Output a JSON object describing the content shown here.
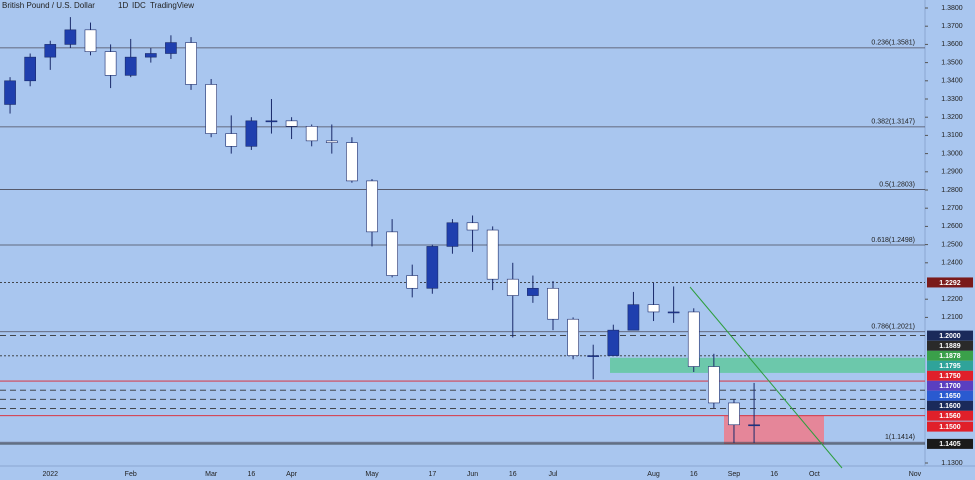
{
  "chart_data": {
    "type": "candlestick",
    "title": "British Pound / U.S. Dollar",
    "interval": "1D",
    "source": "IDC",
    "brand": "TradingView",
    "categories": [
      null,
      null,
      "2022",
      null,
      null,
      null,
      "Feb",
      null,
      null,
      null,
      "Mar",
      null,
      "16",
      null,
      "Apr",
      null,
      null,
      null,
      "May",
      null,
      null,
      "17",
      null,
      "Jun",
      null,
      "16",
      null,
      "Jul",
      null,
      null,
      null,
      null,
      "Aug",
      null,
      "16",
      null,
      "Sep",
      null,
      "16",
      null,
      "Oct",
      null,
      null,
      null,
      null,
      "Nov"
    ],
    "open": [
      1.327,
      1.34,
      1.353,
      1.36,
      1.368,
      1.356,
      1.343,
      1.353,
      1.355,
      1.361,
      1.338,
      1.311,
      1.304,
      1.318,
      1.318,
      1.315,
      1.307,
      1.306,
      1.285,
      1.257,
      1.233,
      1.226,
      1.249,
      1.262,
      1.258,
      1.231,
      1.222,
      1.226,
      1.209,
      1.189,
      1.189,
      1.203,
      1.217,
      1.213,
      1.213,
      1.183,
      1.163,
      1.151,
      null,
      null,
      null,
      null,
      null,
      null,
      null,
      null
    ],
    "high": [
      1.342,
      1.355,
      1.362,
      1.375,
      1.372,
      1.36,
      1.363,
      1.358,
      1.365,
      1.364,
      1.341,
      1.321,
      1.32,
      1.33,
      1.32,
      1.316,
      1.316,
      1.309,
      1.286,
      1.264,
      1.239,
      1.25,
      1.264,
      1.266,
      1.26,
      1.24,
      1.233,
      1.23,
      1.21,
      1.195,
      1.206,
      1.224,
      1.229,
      1.227,
      1.215,
      1.19,
      1.165,
      1.174,
      null,
      null,
      null,
      null,
      null,
      null,
      null,
      null
    ],
    "low": [
      1.322,
      1.337,
      1.346,
      1.358,
      1.354,
      1.336,
      1.342,
      1.35,
      1.352,
      1.335,
      1.309,
      1.3,
      1.302,
      1.311,
      1.308,
      1.304,
      1.3,
      1.284,
      1.249,
      1.232,
      1.221,
      1.223,
      1.245,
      1.246,
      1.225,
      1.199,
      1.218,
      1.203,
      1.187,
      1.176,
      1.189,
      1.203,
      1.208,
      1.207,
      1.18,
      1.16,
      1.141,
      1.141,
      null,
      null,
      null,
      null,
      null,
      null,
      null,
      null
    ],
    "close": [
      1.34,
      1.353,
      1.36,
      1.368,
      1.356,
      1.343,
      1.353,
      1.355,
      1.361,
      1.338,
      1.311,
      1.304,
      1.318,
      1.318,
      1.315,
      1.307,
      1.306,
      1.285,
      1.257,
      1.233,
      1.226,
      1.249,
      1.262,
      1.258,
      1.231,
      1.222,
      1.226,
      1.209,
      1.189,
      1.189,
      1.203,
      1.217,
      1.213,
      1.213,
      1.183,
      1.163,
      1.151,
      1.151,
      null,
      null,
      null,
      null,
      null,
      null,
      null,
      null
    ],
    "up_color": "#1f3fae",
    "down_color": "#ffffff",
    "ylim": [
      1.13,
      1.38
    ],
    "yticks": [
      {
        "value": 1.38,
        "label": "1.3800"
      },
      {
        "value": 1.37,
        "label": "1.3700"
      },
      {
        "value": 1.36,
        "label": "1.3600"
      },
      {
        "value": 1.35,
        "label": "1.3500"
      },
      {
        "value": 1.34,
        "label": "1.3400"
      },
      {
        "value": 1.33,
        "label": "1.3300"
      },
      {
        "value": 1.32,
        "label": "1.3200"
      },
      {
        "value": 1.31,
        "label": "1.3100"
      },
      {
        "value": 1.3,
        "label": "1.3000"
      },
      {
        "value": 1.29,
        "label": "1.2900"
      },
      {
        "value": 1.28,
        "label": "1.2800"
      },
      {
        "value": 1.27,
        "label": "1.2700"
      },
      {
        "value": 1.26,
        "label": "1.2600"
      },
      {
        "value": 1.25,
        "label": "1.2500"
      },
      {
        "value": 1.24,
        "label": "1.2400"
      },
      {
        "value": 1.22,
        "label": "1.2200"
      },
      {
        "value": 1.21,
        "label": "1.2100"
      },
      {
        "value": 1.13,
        "label": "1.1300"
      }
    ],
    "fib_levels": [
      {
        "value": 1.3581,
        "label": "0.236(1.3581)"
      },
      {
        "value": 1.3147,
        "label": "0.382(1.3147)"
      },
      {
        "value": 1.2803,
        "label": "0.5(1.2803)"
      },
      {
        "value": 1.2498,
        "label": "0.618(1.2498)"
      },
      {
        "value": 1.2021,
        "label": "0.786(1.2021)"
      },
      {
        "value": 1.1414,
        "label": "1(1.1414)"
      }
    ],
    "price_labels": [
      {
        "value": 1.2292,
        "label": "1.2292",
        "color": "#7a1a1a",
        "line": "dotted"
      },
      {
        "value": 1.2,
        "label": "1.2000",
        "color": "#1a2a5a",
        "line": "dashed"
      },
      {
        "value": 1.1889,
        "label": "1.1889",
        "color": "#2a2a2a",
        "line": "dotted"
      },
      {
        "value": 1.1878,
        "label": "1.1878",
        "color": "#3aa04a",
        "line": null
      },
      {
        "value": 1.1795,
        "label": "1.1795",
        "color": "#2fa39a",
        "line": null
      },
      {
        "value": 1.175,
        "label": "1.1750",
        "color": "#e0202a",
        "line": "solid"
      },
      {
        "value": 1.17,
        "label": "1.1700",
        "color": "#5a3fc0",
        "line": "dashed"
      },
      {
        "value": 1.165,
        "label": "1.1650",
        "color": "#2a5ad0",
        "line": "dashed"
      },
      {
        "value": 1.16,
        "label": "1.1600",
        "color": "#1a2a5a",
        "line": "dashed"
      },
      {
        "value": 1.156,
        "label": "1.1560",
        "color": "#e0202a",
        "line": "solid"
      },
      {
        "value": 1.15,
        "label": "1.1500",
        "color": "#e0202a",
        "line": null
      },
      {
        "value": 1.1405,
        "label": "1.1405",
        "color": "#1a1a1a",
        "line": "solid"
      }
    ],
    "support_zone": {
      "low": 1.1405,
      "high": 1.156,
      "color": "#f07a8a"
    },
    "resistance_zone": {
      "low": 1.1795,
      "high": 1.1878,
      "color": "#5cc89a"
    }
  }
}
